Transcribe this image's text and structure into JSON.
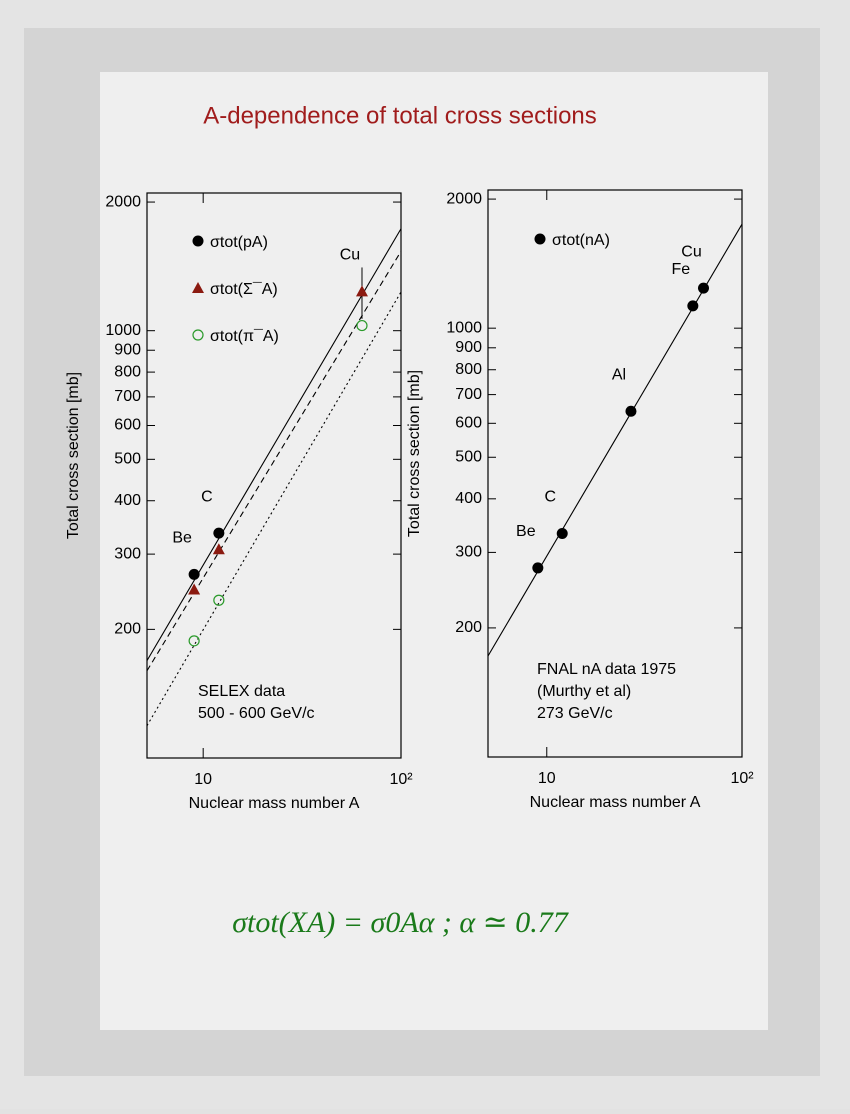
{
  "title": "A-dependence of total cross sections",
  "formula": "σtot(XA) = σ0Aα ; α ≃ 0.77",
  "chart_data": [
    {
      "type": "scatter",
      "xlabel": "Nuclear mass number A",
      "ylabel": "Total cross section [mb]",
      "log_x": true,
      "log_y": true,
      "xlim": [
        5.2,
        100
      ],
      "ylim": [
        100,
        2100
      ],
      "xticks": [
        10,
        {
          "value": 100,
          "label": "10²"
        }
      ],
      "yticks": [
        200,
        300,
        400,
        500,
        600,
        700,
        800,
        900,
        1000,
        2000
      ],
      "categories": [
        "Be",
        "C",
        "Cu"
      ],
      "x": [
        9,
        12,
        63.5
      ],
      "series": [
        {
          "name": "σtot(pA)",
          "color": "#000000",
          "marker": "circle",
          "values": [
            269,
            336,
            null
          ]
        },
        {
          "name": "σtot(Σ¯A)",
          "color": "#8b1a10",
          "marker": "triangle",
          "values": [
            248,
            308,
            1236
          ],
          "errors": [
            null,
            null,
            170
          ]
        },
        {
          "name": "σtot(π¯A)",
          "color": "#2a9a2a",
          "marker": "open-circle",
          "values": [
            188,
            234,
            1028
          ]
        }
      ],
      "fits": [
        {
          "style": "solid",
          "x": [
            5.2,
            100
          ],
          "values": [
            169,
            1732
          ]
        },
        {
          "style": "dashed",
          "x": [
            5.2,
            100
          ],
          "values": [
            160,
            1534
          ]
        },
        {
          "style": "dotted",
          "x": [
            5.2,
            100
          ],
          "values": [
            119,
            1232
          ]
        }
      ],
      "notes": [
        "SELEX data",
        "500 - 600 GeV/c"
      ],
      "note_color": "#1a1a8c"
    },
    {
      "type": "scatter",
      "xlabel": "Nuclear mass number A",
      "ylabel": "Total cross section [mb]",
      "log_x": true,
      "log_y": true,
      "xlim": [
        5,
        100
      ],
      "ylim": [
        100,
        2100
      ],
      "xticks": [
        10,
        {
          "value": 100,
          "label": "10²"
        }
      ],
      "yticks": [
        200,
        300,
        400,
        500,
        600,
        700,
        800,
        900,
        1000,
        2000
      ],
      "categories": [
        "Be",
        "C",
        "Al",
        "Fe",
        "Cu"
      ],
      "x": [
        9,
        12,
        27,
        56,
        63.5
      ],
      "series": [
        {
          "name": "σtot(nA)",
          "color": "#000000",
          "marker": "circle",
          "values": [
            276,
            332,
            640,
            1127,
            1240
          ]
        }
      ],
      "fits": [
        {
          "style": "solid",
          "x": [
            5,
            100
          ],
          "values": [
            172,
            1748
          ]
        }
      ],
      "notes": [
        "FNAL nA data 1975",
        "(Murthy et al)",
        "273 GeV/c"
      ],
      "note_color": "#000000"
    }
  ]
}
